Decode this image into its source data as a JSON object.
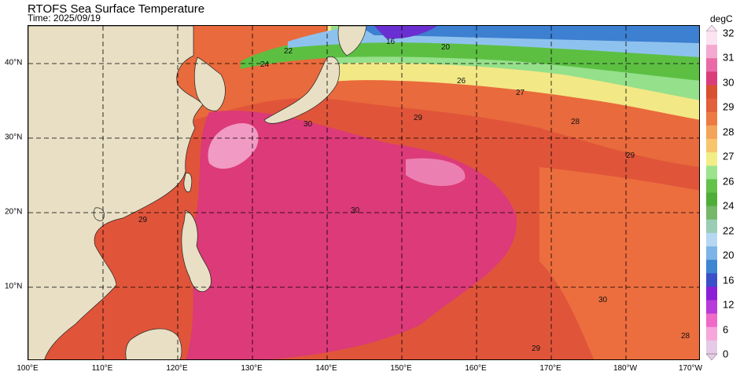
{
  "title": "RTOFS Sea Surface Temperature",
  "subtitle": "Time: 2025/09/19",
  "colorbar": {
    "unit": "degC",
    "ticks": [
      "32",
      "31",
      "30",
      "29",
      "28",
      "27",
      "26",
      "24",
      "22",
      "20",
      "16",
      "12",
      "6",
      "0"
    ],
    "colors": [
      "#fbe3f1",
      "#f3a9d0",
      "#e96aa6",
      "#d93e7a",
      "#d9502f",
      "#e2603b",
      "#ee7a43",
      "#f4a45a",
      "#f8c46c",
      "#f2ee86",
      "#9ce38c",
      "#64c24a",
      "#4fae38",
      "#76b86a",
      "#9acdb4",
      "#b6d7f2",
      "#7db3e8",
      "#3e86d2",
      "#3a50c8",
      "#8a1fd6",
      "#b83cd9",
      "#f06ac8",
      "#f7a6db",
      "#e6cbe8"
    ]
  },
  "map": {
    "x_ticks": [
      "100°E",
      "110°E",
      "120°E",
      "130°E",
      "140°E",
      "150°E",
      "160°E",
      "170°E",
      "180°W",
      "170°W"
    ],
    "y_ticks": [
      "40°N",
      "30°N",
      "20°N",
      "10°N"
    ],
    "colors": {
      "land": "#e8dfc4",
      "warm_ocean": "#e0553a",
      "hot_ocean": "#dc3a78",
      "hottest": "#ef8ab8",
      "orange": "#ef7843",
      "yellow": "#f3e886",
      "light_green": "#95e08a",
      "green": "#5cbf42",
      "light_blue": "#8ec2ee",
      "blue": "#3d7fd0",
      "purple": "#6a2fd0"
    },
    "contour_labels": [
      "16",
      "20",
      "22",
      "24",
      "26",
      "27",
      "28",
      "29",
      "30"
    ]
  }
}
